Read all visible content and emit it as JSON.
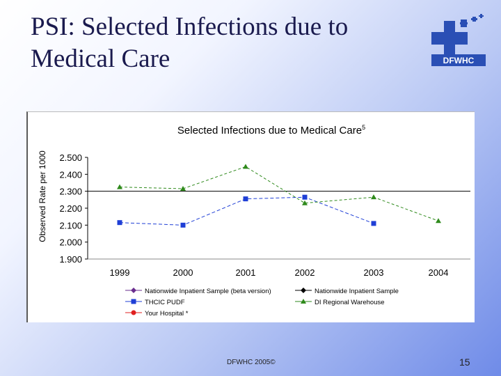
{
  "slide": {
    "title": "PSI: Selected Infections due to Medical Care",
    "footer": "DFWHC 2005©",
    "page_number": "15",
    "logo_text": "DFWHC"
  },
  "colors": {
    "logo_blue": "#2a4fb5",
    "beta": "#6a2d8e",
    "nis": "#000000",
    "thcic": "#1f3fd6",
    "dfw": "#2f8a1c",
    "your_hospital": "#e02020"
  },
  "chart_data": {
    "type": "line",
    "title": "Selected Infections due to Medical Care",
    "title_superscript": "5",
    "xlabel": "",
    "ylabel": "Observed Rate per 1000",
    "categories": [
      "1999",
      "2000",
      "2001",
      "2002",
      "2003",
      "2004"
    ],
    "ylim": [
      1.9,
      2.5
    ],
    "yticks": [
      "2.500",
      "2.400",
      "2.300",
      "2.200",
      "2.100",
      "2.000",
      "1.900"
    ],
    "ytick_values": [
      2.5,
      2.4,
      2.3,
      2.2,
      2.1,
      2.0,
      1.9
    ],
    "reference_line": {
      "name": "Nationwide Inpatient Sample",
      "value": 2.3
    },
    "series": [
      {
        "name": "Nationwide Inpatient Sample (beta version)",
        "values": [
          null,
          null,
          null,
          null,
          null,
          null
        ]
      },
      {
        "name": "Nationwide Inpatient Sample",
        "values": [
          2.3,
          2.3,
          2.3,
          2.3,
          2.3,
          2.3
        ]
      },
      {
        "name": "THCIC PUDF",
        "values": [
          2.115,
          2.1,
          2.255,
          2.265,
          2.11,
          null
        ]
      },
      {
        "name": "DI Regional Warehouse",
        "values": [
          2.325,
          2.315,
          2.445,
          2.23,
          2.265,
          2.125
        ]
      },
      {
        "name": "Your Hospital *",
        "values": [
          null,
          null,
          null,
          null,
          null,
          null
        ]
      }
    ]
  }
}
